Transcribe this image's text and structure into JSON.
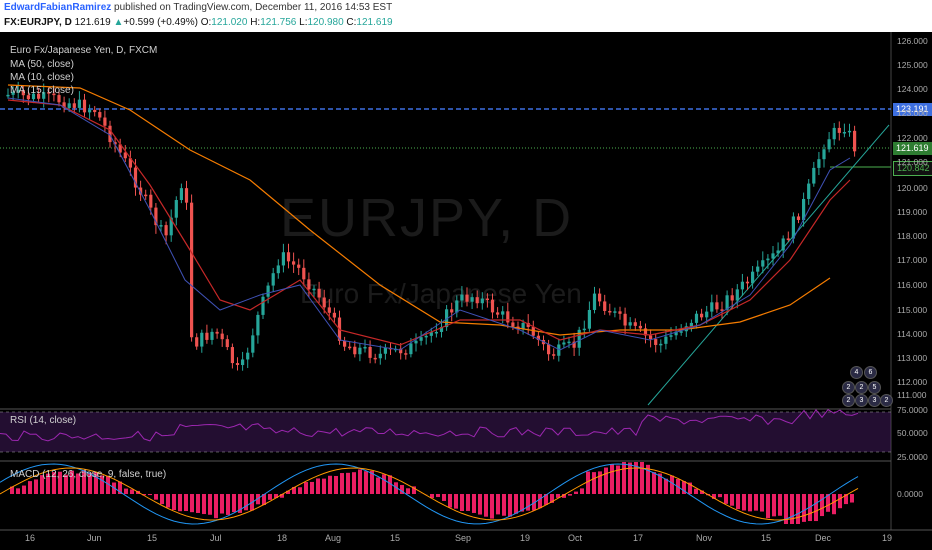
{
  "header": {
    "author": "EdwardFabianRamirez",
    "published_text": "published on TradingView.com, December 11, 2016 14:53 EST",
    "symbol": "FX:EURJPY, D",
    "last": "121.619",
    "change_arrow": "▲",
    "change": "+0.599 (+0.49%)",
    "o_label": "O:",
    "o_val": "121.020",
    "h_label": "H:",
    "h_val": "121.756",
    "l_label": "L:",
    "l_val": "120.980",
    "c_label": "C:",
    "c_val": "121.619"
  },
  "main": {
    "title": "Euro Fx/Japanese Yen, D, FXCM",
    "ma50": "MA (50, close)",
    "ma10": "MA (10, close)",
    "ma15": "MA (15, close)",
    "watermark_symbol": "EURJPY, D",
    "watermark_name": "Euro Fx/Japanese Yen",
    "tag_resistance": "123.191",
    "tag_price": "121.619",
    "tag_support": "120.842",
    "indicator_badges": [
      "4",
      "6",
      "2",
      "2",
      "5",
      "2",
      "3",
      "3",
      "2"
    ]
  },
  "price_axis": [
    "126.000",
    "125.000",
    "124.000",
    "123.000",
    "122.000",
    "121.000",
    "120.000",
    "119.000",
    "118.000",
    "117.000",
    "116.000",
    "115.000",
    "114.000",
    "113.000",
    "112.000",
    "111.000"
  ],
  "rsi": {
    "label": "RSI (14, close)",
    "axis": [
      "75.0000",
      "50.0000",
      "25.0000"
    ]
  },
  "macd": {
    "label": "MACD (12, 26, close, 9, false, true)",
    "axis": [
      "0.0000"
    ]
  },
  "time_axis": [
    "16",
    "Jun",
    "15",
    "Jul",
    "18",
    "Aug",
    "15",
    "Sep",
    "19",
    "Oct",
    "17",
    "Nov",
    "15",
    "Dec",
    "19"
  ],
  "colors": {
    "background": "#000000",
    "up": "#26a69a",
    "down": "#ef5350",
    "ma50": "#f57c00",
    "ma10": "#3f51b5",
    "ma15": "#c62828",
    "resistance": "#3d6fe0",
    "current": "#4caf50",
    "rsi": "#9c27b0",
    "macd_hist": "#e91e63",
    "macd_line": "#2196f3",
    "signal_line": "#ff9800"
  }
}
